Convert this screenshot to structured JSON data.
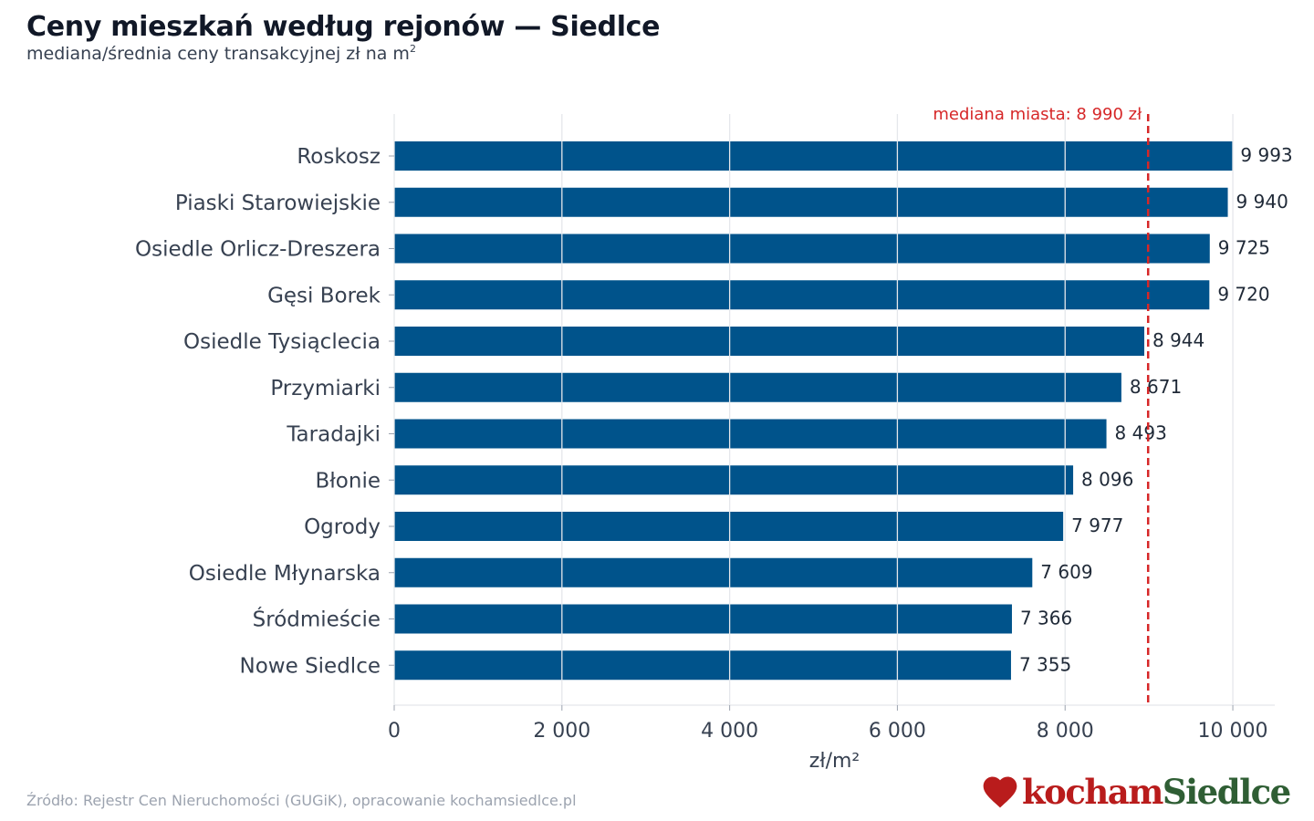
{
  "header": {
    "title": "Ceny mieszkań według rejonów — Siedlce",
    "subtitle_main": "mediana/średnia ceny transakcyjnej zł na m",
    "subtitle_sup": "2"
  },
  "chart_data": {
    "type": "bar",
    "orientation": "horizontal",
    "categories": [
      "Roskosz",
      "Piaski Starowiejskie",
      "Osiedle Orlicz-Dreszera",
      "Gęsi Borek",
      "Osiedle Tysiąclecia",
      "Przymiarki",
      "Taradajki",
      "Błonie",
      "Ogrody",
      "Osiedle Młynarska",
      "Śródmieście",
      "Nowe Siedlce"
    ],
    "values": [
      9993,
      9940,
      9725,
      9720,
      8944,
      8671,
      8493,
      8096,
      7977,
      7609,
      7366,
      7355
    ],
    "value_labels": [
      "9 993",
      "9 940",
      "9 725",
      "9 720",
      "8 944",
      "8 671",
      "8 493",
      "8 096",
      "7 977",
      "7 609",
      "7 366",
      "7 355"
    ],
    "xlabel": "zł/m²",
    "xlim": [
      0,
      10500
    ],
    "xticks": [
      0,
      2000,
      4000,
      6000,
      8000,
      10000
    ],
    "xtick_labels": [
      "0",
      "2 000",
      "4 000",
      "6 000",
      "8 000",
      "10 000"
    ],
    "grid": true,
    "bar_color": "#00538b",
    "reference_line": {
      "value": 8990,
      "label": "mediana miasta: 8 990 zł",
      "color": "#d62728",
      "style": "dashed"
    }
  },
  "footer": {
    "source": "Źródło: Rejestr Cen Nieruchomości (GUGiK), opracowanie kochamsiedlce.pl",
    "logo_part1": "kocham",
    "logo_part2": "Siedlce"
  }
}
